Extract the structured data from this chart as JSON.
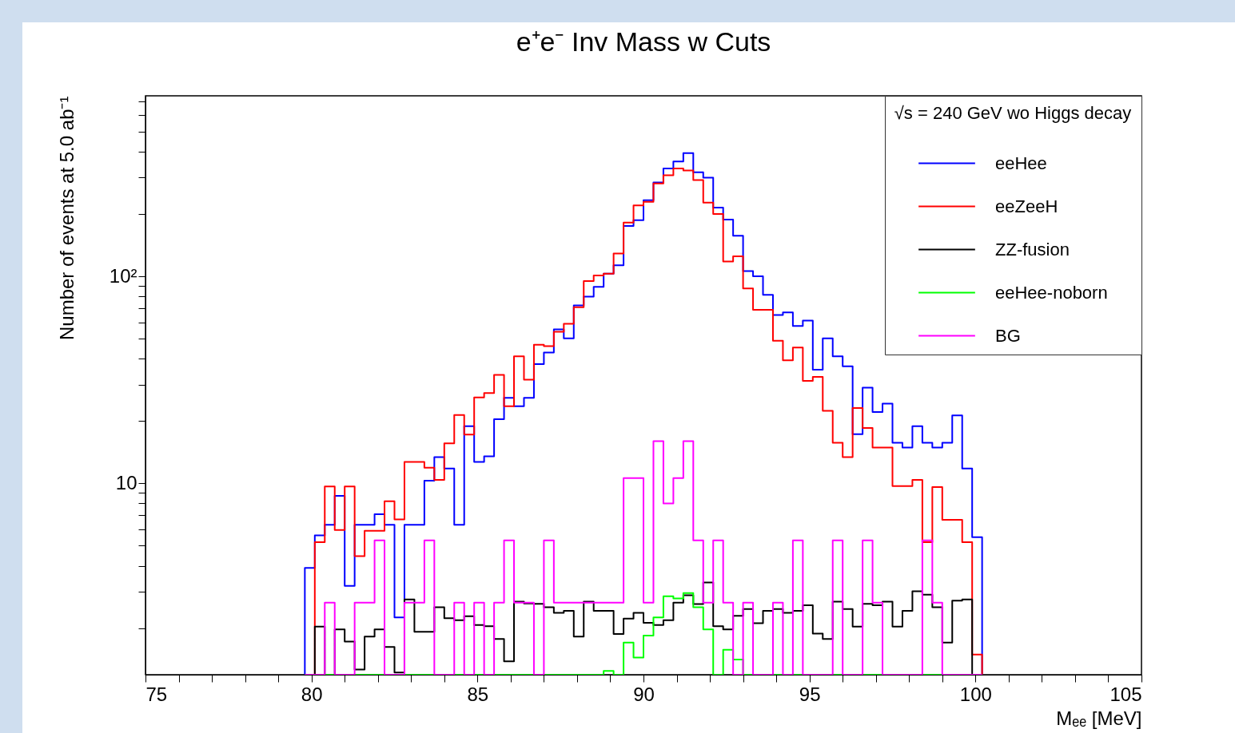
{
  "chart_data": {
    "type": "histogram",
    "title": "e⁺e⁻ Inv Mass w Cuts",
    "xlabel": "Mₑₑ [MeV]",
    "ylabel": "Number of events at 5.0 ab⁻¹",
    "legend_title": "√s = 240 GeV wo Higgs decay",
    "legend": "top right",
    "grid": false,
    "log": true,
    "bins": [
      79.8,
      80.1,
      80.4,
      80.7,
      81,
      81.3,
      81.6,
      81.9,
      82.2,
      82.5,
      82.8,
      83.1,
      83.4,
      83.7,
      84,
      84.3,
      84.6,
      84.9,
      85.2,
      85.5,
      85.8,
      86.1,
      86.4,
      86.7,
      87,
      87.3,
      87.6,
      87.9,
      88.2,
      88.5,
      88.8,
      89.1,
      89.4,
      89.7,
      90,
      90.3,
      90.6,
      90.9,
      91.2,
      91.5,
      91.8,
      92.1,
      92.4,
      92.7,
      93,
      93.3,
      93.6,
      93.9,
      94.2,
      94.5,
      94.8,
      95.1,
      95.4,
      95.7,
      96,
      96.3,
      96.6,
      96.9,
      97.2,
      97.5,
      97.8,
      98.1,
      98.4,
      98.7,
      99,
      99.3,
      99.6,
      99.9,
      100.2
    ],
    "series": [
      {
        "name": "eeHee",
        "color": "#0000ff",
        "values": [
          3.9,
          5.6,
          6.3,
          8.7,
          3.2,
          6.3,
          6.3,
          7.1,
          6.3,
          2.25,
          6.3,
          6.3,
          10.3,
          13.4,
          11.8,
          6.3,
          18.9,
          12.7,
          13.5,
          20.4,
          25.9,
          23.6,
          25.9,
          37.7,
          42.9,
          55.4,
          50.2,
          72.4,
          79.8,
          89,
          103,
          113,
          175,
          187,
          233,
          284,
          332,
          359,
          394,
          318,
          300,
          215,
          188,
          157,
          106,
          100,
          81.4,
          65.1,
          67,
          57.6,
          61.2,
          35.4,
          50.2,
          41.1,
          36.8,
          17.3,
          29,
          22.1,
          24.3,
          15.7,
          14.9,
          18.9,
          15.7,
          14.9,
          15.7,
          21.3,
          11.8,
          5.5
        ]
      },
      {
        "name": "eeZeeH",
        "color": "#ff0000",
        "values": [
          null,
          5.2,
          9.65,
          5.95,
          9.65,
          4.45,
          5.9,
          5.9,
          8.2,
          6.7,
          12.7,
          12.7,
          11.9,
          10.4,
          15.6,
          21.4,
          17.2,
          26,
          27.3,
          33.4,
          23.6,
          41.1,
          31.7,
          46.7,
          46,
          54,
          59,
          71,
          95,
          101,
          103,
          129,
          182,
          220,
          229,
          281,
          308,
          332,
          325,
          292,
          227,
          200,
          118,
          125,
          87.5,
          69,
          69,
          48.9,
          39.3,
          45.3,
          31.3,
          32.7,
          22.4,
          15.7,
          13.4,
          23.1,
          18.5,
          14.9,
          14.9,
          9.7,
          9.7,
          10.4,
          5.2,
          9.6,
          6.67,
          6.67,
          5.2,
          1.49
        ]
      },
      {
        "name": "ZZ-fusion",
        "color": "#000000",
        "values": [
          null,
          2.03,
          null,
          1.97,
          1.72,
          1.26,
          1.82,
          1.97,
          1.62,
          1.22,
          2.75,
          1.92,
          1.92,
          2.52,
          2.23,
          2.18,
          2.28,
          2.07,
          2.04,
          1.77,
          1.38,
          2.68,
          2.63,
          2.62,
          2.52,
          2.37,
          2.42,
          1.82,
          2.68,
          2.42,
          2.42,
          1.87,
          2.22,
          2.37,
          2.12,
          2.07,
          2.18,
          2.65,
          2.88,
          2.61,
          3.32,
          2.04,
          1.97,
          2.29,
          2.47,
          2.11,
          2.42,
          2.47,
          2.37,
          2.42,
          2.58,
          1.88,
          1.77,
          2.68,
          2.47,
          2.03,
          2.62,
          2.58,
          2.68,
          2.03,
          2.42,
          3.01,
          2.9,
          2.52,
          1.7,
          2.71,
          2.75,
          null
        ]
      },
      {
        "name": "eeHee-noborn",
        "color": "#00ff00",
        "values": [
          null,
          null,
          null,
          null,
          null,
          null,
          null,
          null,
          null,
          null,
          null,
          null,
          null,
          null,
          null,
          null,
          null,
          null,
          null,
          null,
          null,
          null,
          null,
          null,
          null,
          null,
          null,
          null,
          null,
          null,
          1.24,
          null,
          1.7,
          1.44,
          1.84,
          2.25,
          2.85,
          2.78,
          2.95,
          2.52,
          1.97,
          null,
          1.57,
          1.41,
          null,
          null,
          null,
          null,
          null,
          null,
          null,
          null,
          null,
          null,
          null,
          null,
          null,
          null,
          null,
          null,
          null,
          null,
          null,
          null,
          null,
          null,
          null,
          null
        ]
      },
      {
        "name": "BG",
        "color": "#ff00ff",
        "values": [
          null,
          null,
          2.65,
          null,
          null,
          2.65,
          2.65,
          5.3,
          null,
          null,
          2.65,
          2.65,
          5.3,
          null,
          null,
          2.65,
          null,
          2.65,
          null,
          2.65,
          5.3,
          2.65,
          2.65,
          null,
          5.3,
          2.65,
          2.65,
          2.65,
          2.65,
          2.65,
          2.65,
          2.65,
          10.6,
          10.6,
          2.65,
          16,
          8,
          10.6,
          16,
          5.3,
          2.65,
          5.3,
          2.65,
          null,
          2.65,
          null,
          null,
          2.65,
          null,
          5.3,
          null,
          null,
          null,
          5.3,
          null,
          null,
          5.3,
          2.65,
          null,
          null,
          null,
          null,
          5.3,
          2.65,
          null,
          null,
          null,
          null
        ]
      }
    ],
    "xlim": [
      75,
      105
    ],
    "xticks": [
      75,
      {
        "value": 76,
        "label": null
      },
      {
        "value": 77,
        "label": null
      },
      {
        "value": 78,
        "label": null
      },
      {
        "value": 79,
        "label": null
      },
      80,
      {
        "value": 81,
        "label": null
      },
      {
        "value": 82,
        "label": null
      },
      {
        "value": 83,
        "label": null
      },
      {
        "value": 84,
        "label": null
      },
      85,
      {
        "value": 86,
        "label": null
      },
      {
        "value": 87,
        "label": null
      },
      {
        "value": 88,
        "label": null
      },
      {
        "value": 89,
        "label": null
      },
      90,
      {
        "value": 91,
        "label": null
      },
      {
        "value": 92,
        "label": null
      },
      {
        "value": 93,
        "label": null
      },
      {
        "value": 94,
        "label": null
      },
      95,
      {
        "value": 96,
        "label": null
      },
      {
        "value": 97,
        "label": null
      },
      {
        "value": 98,
        "label": null
      },
      {
        "value": 99,
        "label": null
      },
      100,
      {
        "value": 101,
        "label": null
      },
      {
        "value": 102,
        "label": null
      },
      {
        "value": 103,
        "label": null
      },
      {
        "value": 104,
        "label": null
      },
      105
    ],
    "ylim": [
      1.19,
      745
    ],
    "yticks": [
      {
        "value": 2,
        "label": null
      },
      {
        "value": 3,
        "label": null
      },
      {
        "value": 4,
        "label": null
      },
      {
        "value": 5,
        "label": null
      },
      {
        "value": 6,
        "label": null
      },
      {
        "value": 7,
        "label": null
      },
      {
        "value": 8,
        "label": null
      },
      {
        "value": 9,
        "label": null
      },
      10,
      {
        "value": 20,
        "label": null
      },
      {
        "value": 30,
        "label": null
      },
      {
        "value": 40,
        "label": null
      },
      {
        "value": 50,
        "label": null
      },
      {
        "value": 60,
        "label": null
      },
      {
        "value": 70,
        "label": null
      },
      {
        "value": 80,
        "label": null
      },
      {
        "value": 90,
        "label": null
      },
      {
        "value": 100,
        "label": "10²"
      },
      {
        "value": 200,
        "label": null
      },
      {
        "value": 300,
        "label": null
      },
      {
        "value": 400,
        "label": null
      },
      {
        "value": 500,
        "label": null
      },
      {
        "value": 600,
        "label": null
      },
      {
        "value": 700,
        "label": null
      }
    ]
  }
}
